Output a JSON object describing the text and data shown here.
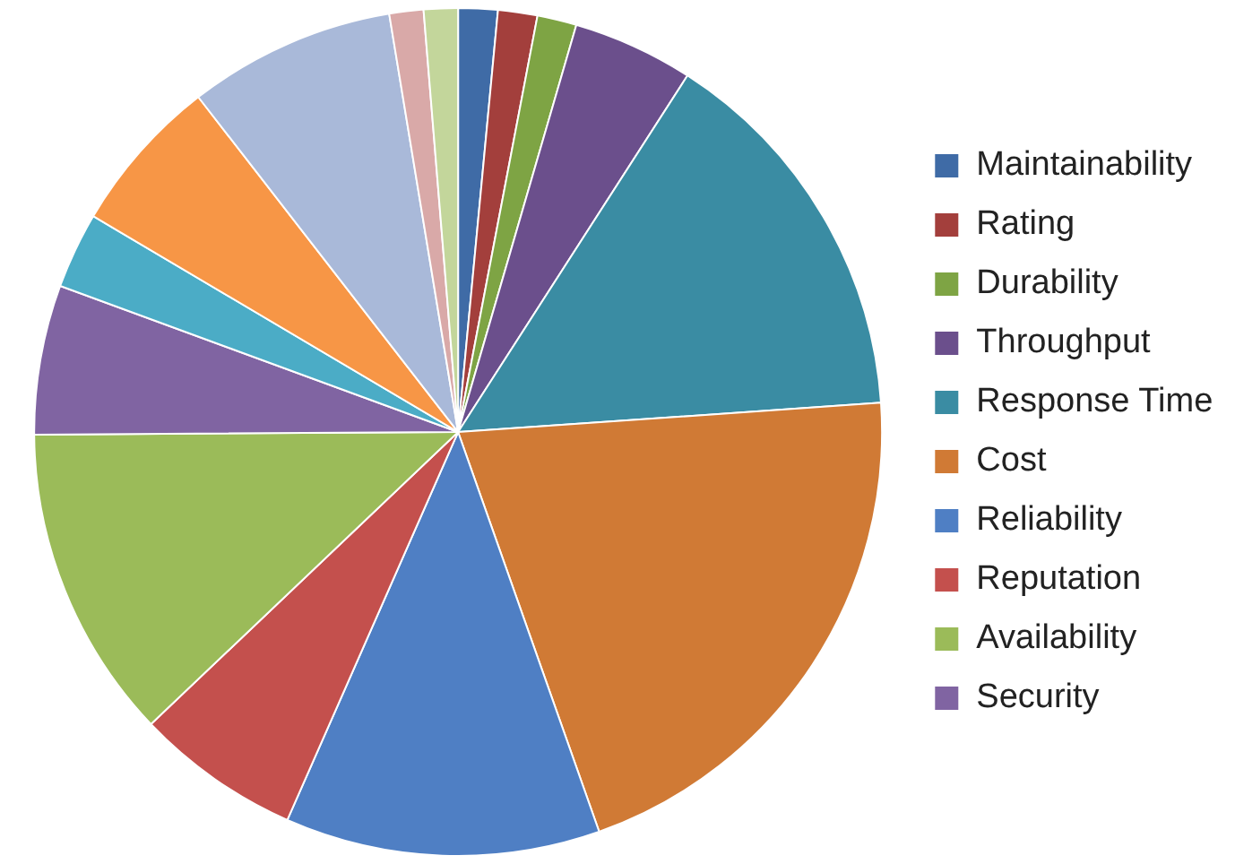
{
  "chart_data": {
    "type": "pie",
    "categories": [
      "Maintainability",
      "Rating",
      "Durability",
      "Throughput",
      "Response Time",
      "Cost",
      "Reliability",
      "Reputation",
      "Availability",
      "Security",
      null,
      null,
      null,
      null,
      null
    ],
    "values": [
      1.5,
      1.5,
      1.5,
      4.6,
      14.8,
      20.7,
      12,
      6.3,
      12,
      5.7,
      2.9,
      6,
      7.9,
      1.3,
      1.3
    ],
    "colors": [
      "#3f6ba6",
      "#a33f3c",
      "#7ea444",
      "#6b4f8c",
      "#3a8ca3",
      "#d07a35",
      "#4f7fc4",
      "#c4504d",
      "#9bbb59",
      "#8064a2",
      "#4bacc6",
      "#f79646",
      "#a9b9d9",
      "#d9a9a8",
      "#c3d69b"
    ],
    "legend": "right"
  }
}
